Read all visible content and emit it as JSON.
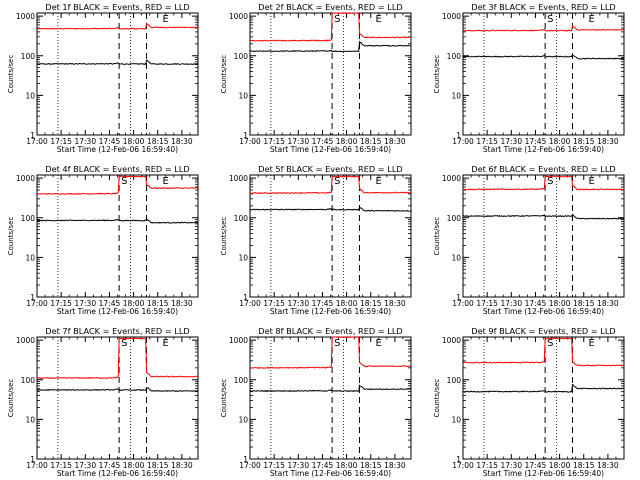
{
  "chart_data": [
    {
      "type": "line",
      "title": "Det 1f BLACK = Events, RED = LLD",
      "xlabel": "Start Time (12-Feb-06 16:59:40)",
      "ylabel": "Counts/sec",
      "series": [
        {
          "color": "#ff0000",
          "pre": 480,
          "during": 480,
          "post": 520
        },
        {
          "color": "#000000",
          "pre": 62,
          "during": 62,
          "post": 62
        }
      ],
      "markers": {
        "s_label": "",
        "e_label": "E"
      }
    },
    {
      "type": "line",
      "title": "Det 2f BLACK = Events, RED = LLD",
      "xlabel": "Start Time (12-Feb-06 16:59:40)",
      "ylabel": "Counts/sec",
      "series": [
        {
          "color": "#ff0000",
          "pre": 240,
          "during": 1200,
          "post": 290
        },
        {
          "color": "#000000",
          "pre": 130,
          "during": 130,
          "post": 180
        }
      ],
      "markers": {
        "s_label": "S",
        "e_label": "E"
      }
    },
    {
      "type": "line",
      "title": "Det 3f BLACK = Events, RED = LLD",
      "xlabel": "Start Time (12-Feb-06 16:59:40)",
      "ylabel": "Counts/sec",
      "series": [
        {
          "color": "#ff0000",
          "pre": 430,
          "during": 430,
          "post": 450
        },
        {
          "color": "#000000",
          "pre": 95,
          "during": 95,
          "post": 85
        }
      ],
      "markers": {
        "s_label": "S",
        "e_label": "E"
      }
    },
    {
      "type": "line",
      "title": "Det 4f BLACK = Events, RED = LLD",
      "xlabel": "Start Time (12-Feb-06 16:59:40)",
      "ylabel": "Counts/sec",
      "series": [
        {
          "color": "#ff0000",
          "pre": 400,
          "during": 1100,
          "post": 560
        },
        {
          "color": "#000000",
          "pre": 85,
          "during": 85,
          "post": 75
        }
      ],
      "markers": {
        "s_label": "S",
        "e_label": "E"
      }
    },
    {
      "type": "line",
      "title": "Det 5f BLACK = Events, RED = LLD",
      "xlabel": "Start Time (12-Feb-06 16:59:40)",
      "ylabel": "Counts/sec",
      "series": [
        {
          "color": "#ff0000",
          "pre": 420,
          "during": 1100,
          "post": 430
        },
        {
          "color": "#000000",
          "pre": 160,
          "during": 160,
          "post": 150
        }
      ],
      "markers": {
        "s_label": "S",
        "e_label": "E"
      }
    },
    {
      "type": "line",
      "title": "Det 6f BLACK = Events, RED = LLD",
      "xlabel": "Start Time (12-Feb-06 16:59:40)",
      "ylabel": "Counts/sec",
      "series": [
        {
          "color": "#ff0000",
          "pre": 520,
          "during": 1100,
          "post": 520
        },
        {
          "color": "#000000",
          "pre": 110,
          "during": 110,
          "post": 95
        }
      ],
      "markers": {
        "s_label": "S",
        "e_label": "E"
      }
    },
    {
      "type": "line",
      "title": "Det 7f BLACK = Events, RED = LLD",
      "xlabel": "Start Time (12-Feb-06 16:59:40)",
      "ylabel": "Counts/sec",
      "series": [
        {
          "color": "#ff0000",
          "pre": 110,
          "during": 1100,
          "post": 120
        },
        {
          "color": "#000000",
          "pre": 55,
          "during": 55,
          "post": 52
        }
      ],
      "markers": {
        "s_label": "S",
        "e_label": "E"
      }
    },
    {
      "type": "line",
      "title": "Det 8f BLACK = Events, RED = LLD",
      "xlabel": "Start Time (12-Feb-06 16:59:40)",
      "ylabel": "Counts/sec",
      "series": [
        {
          "color": "#ff0000",
          "pre": 200,
          "during": 1200,
          "post": 220
        },
        {
          "color": "#000000",
          "pre": 52,
          "during": 52,
          "post": 58
        }
      ],
      "markers": {
        "s_label": "S",
        "e_label": "E"
      }
    },
    {
      "type": "line",
      "title": "Det 9f BLACK = Events, RED = LLD",
      "xlabel": "Start Time (12-Feb-06 16:59:40)",
      "ylabel": "Counts/sec",
      "series": [
        {
          "color": "#ff0000",
          "pre": 270,
          "during": 1100,
          "post": 230
        },
        {
          "color": "#000000",
          "pre": 50,
          "during": 50,
          "post": 60
        }
      ],
      "markers": {
        "s_label": "S",
        "e_label": "E"
      }
    }
  ],
  "axes": {
    "x_ticks": [
      "17:00",
      "17:15",
      "17:30",
      "17:45",
      "18:00",
      "18:15",
      "18:30"
    ],
    "x_tick_minutes": [
      0,
      15,
      30,
      45,
      60,
      75,
      90
    ],
    "x_range_minutes": [
      0,
      100
    ],
    "y_ticks": [
      "1",
      "10",
      "100",
      "1000"
    ],
    "y_tick_values": [
      1,
      10,
      100,
      1000
    ],
    "y_range": [
      1,
      1200
    ],
    "y_scale": "log",
    "dotted_minutes": [
      13,
      58
    ],
    "dashed_minutes": [
      51,
      68
    ]
  }
}
